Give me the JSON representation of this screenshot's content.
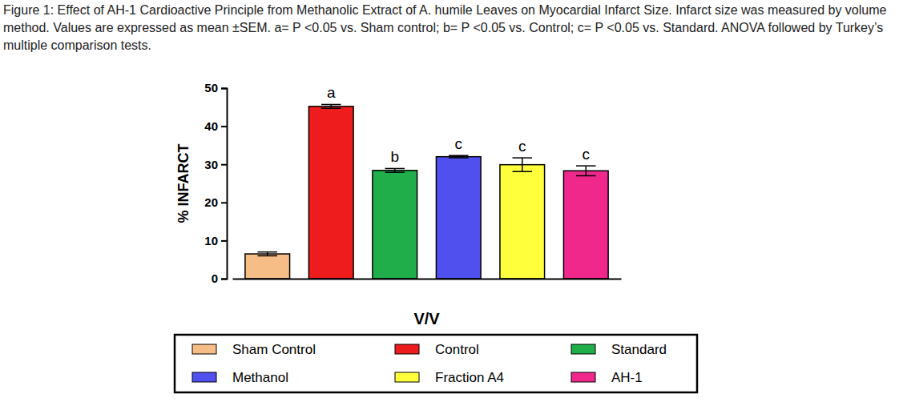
{
  "chart_data": {
    "type": "bar",
    "title": "Figure 1: Effect of AH-1 Cardioactive Principle from Methanolic Extract of A. humile Leaves on Myocardial Infarct Size. Infarct size was measured by volume method. Values are expressed as mean ±SEM. a= P <0.05 vs. Sham control; b= P <0.05 vs. Control; c= P <0.05 vs. Standard. ANOVA followed by Turkey’s multiple comparison tests.",
    "x_label": "V/V",
    "y_label": "% INFARCT",
    "categories": [
      "Sham Control",
      "Control",
      "Standard",
      "Methanol",
      "Fraction A4",
      "AH-1"
    ],
    "values": [
      6.5,
      45.2,
      28.4,
      32.0,
      29.9,
      28.3
    ],
    "errors": [
      0.5,
      0.5,
      0.5,
      0.3,
      1.8,
      1.3
    ],
    "colors": [
      "#f7bd86",
      "#ee1c1c",
      "#1fae4a",
      "#5050ee",
      "#ffff3c",
      "#f0288c"
    ],
    "annotations": [
      null,
      "a",
      "b",
      "c",
      "c",
      "c"
    ],
    "ylim": [
      0,
      50
    ],
    "yticks": [
      0,
      10,
      20,
      30,
      40,
      50
    ],
    "legend": "bottom",
    "tick_labels": "y"
  }
}
